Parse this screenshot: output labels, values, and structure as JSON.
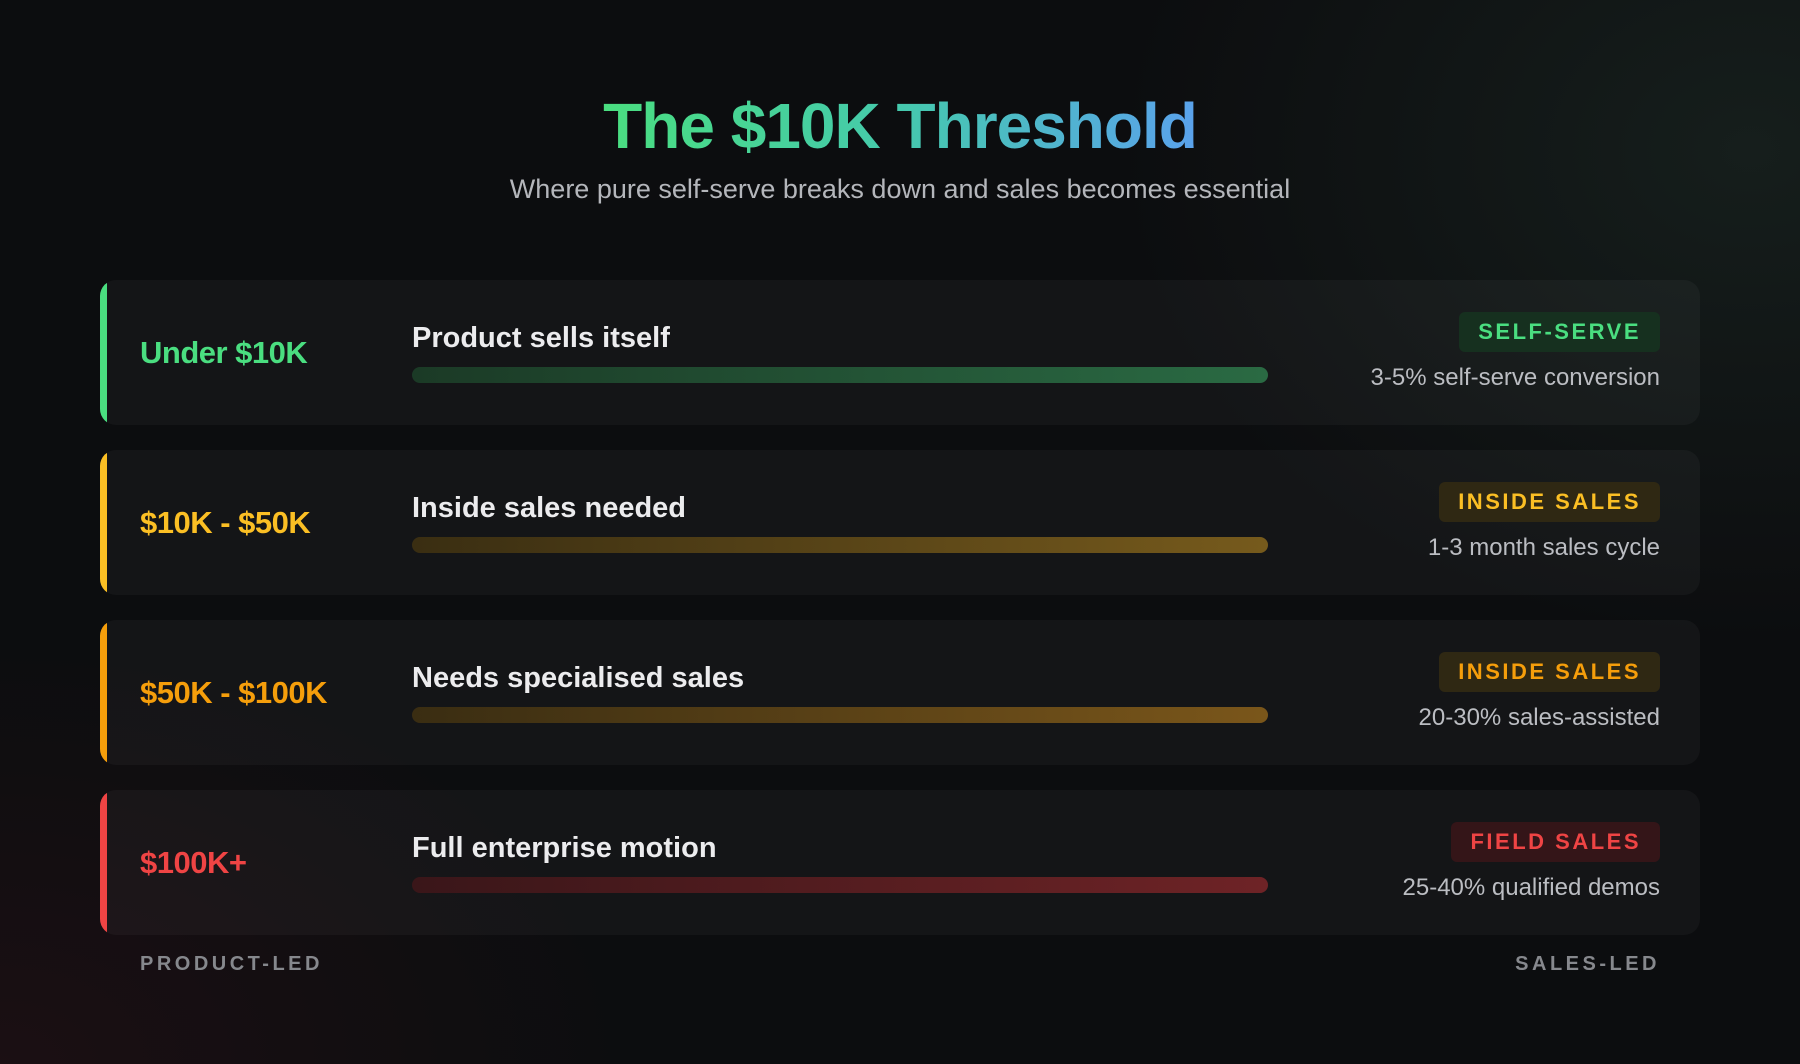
{
  "title": "The $10K Threshold",
  "subtitle": "Where pure self-serve breaks down and sales becomes essential",
  "tiers": [
    {
      "range": "Under $10K",
      "description": "Product sells itself",
      "badge": "SELF-SERVE",
      "metric": "3-5% self-serve conversion",
      "color": "#4ade80",
      "badge_bg": "#16301f",
      "bar_from": "#1b3a26",
      "bar_to": "#2a6a43"
    },
    {
      "range": "$10K - $50K",
      "description": "Inside sales needed",
      "badge": "INSIDE SALES",
      "metric": "1-3 month sales cycle",
      "color": "#fbbf24",
      "badge_bg": "#2f2813",
      "bar_from": "#3a2e12",
      "bar_to": "#765a1c"
    },
    {
      "range": "$50K - $100K",
      "description": "Needs specialised sales",
      "badge": "INSIDE SALES",
      "metric": "20-30% sales-assisted",
      "color": "#f59e0b",
      "badge_bg": "#2f2813",
      "bar_from": "#3a2d12",
      "bar_to": "#7a561a"
    },
    {
      "range": "$100K+",
      "description": "Full enterprise motion",
      "badge": "FIELD SALES",
      "metric": "25-40% qualified demos",
      "color": "#ef4444",
      "badge_bg": "#341518",
      "bar_from": "#3a1619",
      "bar_to": "#6e2326"
    }
  ],
  "footer": {
    "left": "PRODUCT-LED",
    "right": "SALES-LED"
  }
}
